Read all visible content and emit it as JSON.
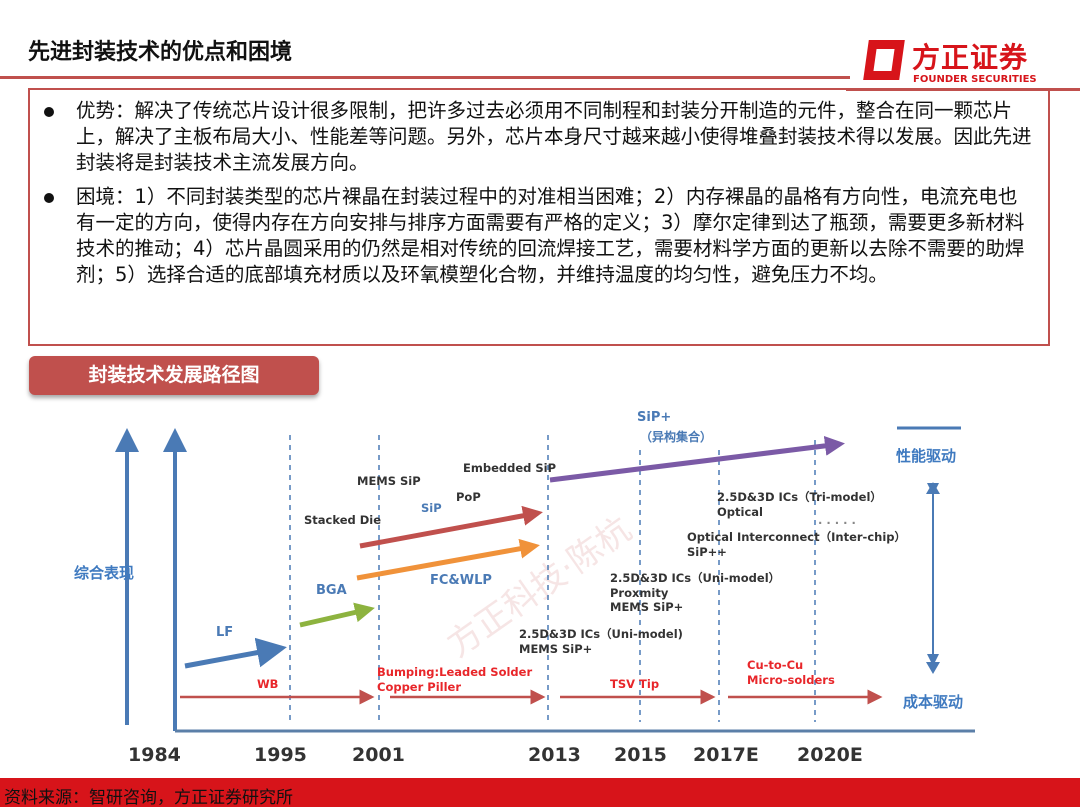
{
  "header": {
    "title": "先进封装技术的优点和困境",
    "logo_cn": "方正证券",
    "logo_en": "FOUNDER SECURITIES"
  },
  "bullets": [
    "优势：解决了传统芯片设计很多限制，把许多过去必须用不同制程和封装分开制造的元件，整合在同一颗芯片上，解决了主板布局大小、性能差等问题。另外，芯片本身尺寸越来越小使得堆叠封装技术得以发展。因此先进封装将是封装技术主流发展方向。",
    "困境：1）不同封装类型的芯片裸晶在封装过程中的对准相当困难；2）内存裸晶的晶格有方向性，电流充电也有一定的方向，使得内存在方向安排与排序方面需要有严格的定义；3）摩尔定律到达了瓶颈，需要更多新材料技术的推动；4）芯片晶圆采用的仍然是相对传统的回流焊接工艺，需要材料学方面的更新以去除不需要的助焊剂；5）选择合适的底部填充材质以及环氧模塑化合物，并维持温度的均匀性，避免压力不均。"
  ],
  "figure": {
    "banner": "封装技术发展路径图",
    "y_label": "综合表现",
    "legend_perf": "性能驱动",
    "legend_cost": "成本驱动",
    "years": [
      "1984",
      "1995",
      "2001",
      "2013",
      "2015",
      "2017E",
      "2020E"
    ],
    "labels": {
      "lf": "LF",
      "bga": "BGA",
      "fcwlp": "FC&WLP",
      "stacked": "Stacked Die",
      "sip": "SiP",
      "pop": "PoP",
      "mems_sip": "MEMS SiP",
      "embedded": "Embedded SiP",
      "sip_plus": "SiP+",
      "sip_plus_cn": "（异构集合）",
      "ic_uni1_a": "2.5D&3D ICs（Uni-model)",
      "ic_uni1_b": "MEMS SiP+",
      "ic_uni2_a": "2.5D&3D ICs（Uni-model）",
      "ic_uni2_b": "Proxmity",
      "ic_uni2_c": "MEMS SiP+",
      "optical_a": "Optical Interconnect（Inter-chip）",
      "optical_b": "SiP++",
      "tri_a": "2.5D&3D ICs（Tri-model）",
      "tri_b": "Optical",
      "dots": ". . . . .",
      "wb": "WB",
      "bump_a": "Bumping:Leaded Solder",
      "bump_b": "Copper Piller",
      "tsv": "TSV Tip",
      "cu_a": "Cu-to-Cu",
      "cu_b": "Micro-solders"
    },
    "watermark": "方正科技·陈杭",
    "colors": {
      "blue": "#4a7ab5",
      "green": "#8db33f",
      "orange": "#f0923a",
      "red": "#c0504d",
      "purple": "#7b5aa6"
    }
  },
  "footer": {
    "source": "资料来源：智研咨询，方正证券研究所"
  }
}
